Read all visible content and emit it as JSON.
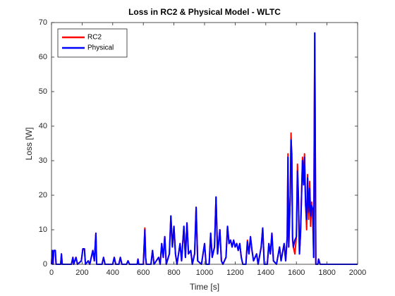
{
  "chart_data": {
    "type": "line",
    "title": "Loss in RC2 & Physical Model - WLTC",
    "xlabel": "Time [s]",
    "ylabel": "Loss [W]",
    "xlim": [
      0,
      2000
    ],
    "ylim": [
      0,
      70
    ],
    "xticks": [
      0,
      200,
      400,
      600,
      800,
      1000,
      1200,
      1400,
      1600,
      1800,
      2000
    ],
    "yticks": [
      0,
      10,
      20,
      30,
      40,
      50,
      60,
      70
    ],
    "legend": "upper-left",
    "x": [
      0,
      5,
      10,
      15,
      25,
      30,
      60,
      65,
      70,
      130,
      140,
      145,
      160,
      170,
      195,
      205,
      215,
      222,
      240,
      250,
      270,
      280,
      290,
      295,
      330,
      340,
      350,
      400,
      410,
      420,
      440,
      450,
      460,
      490,
      500,
      510,
      560,
      565,
      570,
      600,
      610,
      615,
      620,
      650,
      660,
      670,
      700,
      710,
      720,
      730,
      740,
      750,
      770,
      780,
      790,
      800,
      810,
      820,
      840,
      850,
      865,
      875,
      885,
      895,
      910,
      920,
      935,
      945,
      955,
      980,
      1000,
      1010,
      1030,
      1040,
      1050,
      1065,
      1075,
      1085,
      1100,
      1110,
      1120,
      1140,
      1150,
      1160,
      1170,
      1180,
      1190,
      1200,
      1210,
      1220,
      1230,
      1240,
      1250,
      1270,
      1280,
      1290,
      1300,
      1310,
      1320,
      1340,
      1350,
      1370,
      1380,
      1390,
      1410,
      1420,
      1430,
      1440,
      1450,
      1470,
      1490,
      1500,
      1520,
      1530,
      1540,
      1545,
      1550,
      1560,
      1565,
      1570,
      1575,
      1580,
      1590,
      1600,
      1607,
      1613,
      1620,
      1627,
      1640,
      1647,
      1653,
      1660,
      1667,
      1673,
      1680,
      1687,
      1693,
      1700,
      1707,
      1713,
      1720,
      1727,
      1740,
      1745,
      1755,
      2000
    ],
    "series": [
      {
        "name": "RC2",
        "color": "#ff0000",
        "values": [
          0,
          4,
          0,
          4,
          4,
          0,
          0,
          3,
          0,
          0,
          2,
          0,
          2,
          0,
          1,
          4.5,
          4.5,
          0,
          1,
          0,
          4,
          1,
          9,
          0,
          0,
          2,
          0,
          0,
          2,
          0,
          0,
          2,
          0,
          0,
          1,
          0,
          0,
          1.5,
          0,
          0,
          10.5,
          2,
          0,
          0,
          4,
          0,
          2,
          0,
          6,
          2,
          8,
          0,
          3,
          14,
          5,
          11,
          3,
          0,
          6,
          1,
          11,
          2,
          12,
          3,
          4,
          0,
          3,
          16.5,
          1,
          0,
          6,
          0,
          0,
          9,
          2,
          5,
          19.5,
          3,
          10,
          1,
          0,
          2,
          11,
          6,
          7,
          5,
          7,
          5,
          6,
          4,
          6,
          2,
          0,
          0,
          7,
          3,
          8,
          4,
          1,
          3,
          0,
          5,
          10.5,
          0,
          0,
          6,
          3,
          9,
          1,
          0,
          5,
          1,
          6,
          1,
          8,
          32,
          5,
          20,
          38,
          30,
          7,
          5,
          3,
          8,
          29,
          20,
          3,
          9,
          31,
          25,
          32,
          18,
          10,
          26,
          13,
          24,
          11,
          18,
          13,
          2,
          67,
          0,
          0,
          1.5,
          0,
          0
        ]
      },
      {
        "name": "Physical",
        "color": "#0000ff",
        "values": [
          0,
          4,
          0,
          4,
          4,
          0,
          0,
          3,
          0,
          0,
          2,
          0,
          2,
          0,
          1,
          4.5,
          4.5,
          0,
          1,
          0,
          4,
          1,
          9,
          0,
          0,
          2,
          0,
          0,
          2,
          0,
          0,
          2,
          0,
          0,
          1,
          0,
          0,
          1.5,
          0,
          0,
          10,
          2,
          0,
          0,
          4,
          0,
          2,
          0,
          6,
          2,
          8,
          0,
          3,
          14,
          5,
          11,
          3,
          0,
          6,
          1,
          11,
          2,
          12,
          3,
          4,
          0,
          3,
          16.5,
          1,
          0,
          6,
          0,
          0,
          9,
          2,
          5,
          19.5,
          3,
          10,
          1,
          0,
          2,
          11,
          6,
          7,
          5,
          7,
          5,
          6,
          4,
          6,
          2,
          0,
          0,
          6.5,
          3,
          8,
          4,
          1,
          3,
          0,
          5,
          10.5,
          0,
          0,
          6,
          3,
          9,
          1,
          0,
          5,
          1,
          6,
          1,
          8,
          31,
          5,
          20,
          36,
          32,
          8,
          5,
          7,
          8,
          27,
          20,
          3,
          9,
          30,
          23,
          31,
          17,
          13,
          25,
          15,
          22,
          14,
          17,
          16,
          2,
          67,
          0,
          0,
          1.5,
          0,
          0
        ]
      }
    ]
  }
}
